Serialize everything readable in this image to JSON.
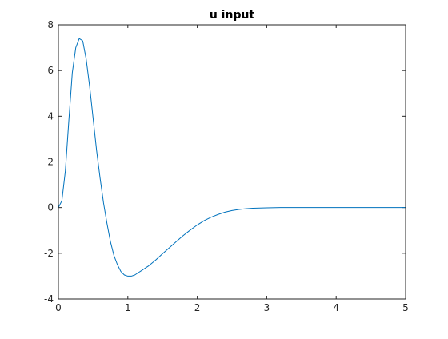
{
  "chart_data": {
    "type": "line",
    "title": "u input",
    "xlabel": "",
    "ylabel": "",
    "xlim": [
      0,
      5
    ],
    "ylim": [
      -4,
      8
    ],
    "xticks": [
      0,
      1,
      2,
      3,
      4,
      5
    ],
    "yticks": [
      -4,
      -2,
      0,
      2,
      4,
      6,
      8
    ],
    "grid": false,
    "box": true,
    "line_color": "#0072BD",
    "series": [
      {
        "x": [
          0,
          0.05,
          0.1,
          0.15,
          0.2,
          0.25,
          0.3,
          0.35,
          0.4,
          0.45,
          0.5,
          0.55,
          0.6,
          0.65,
          0.7,
          0.75,
          0.8,
          0.85,
          0.9,
          0.95,
          1.0,
          1.05,
          1.1,
          1.15,
          1.2,
          1.3,
          1.4,
          1.5,
          1.6,
          1.7,
          1.8,
          1.9,
          2.0,
          2.1,
          2.2,
          2.3,
          2.4,
          2.5,
          2.6,
          2.7,
          2.8,
          2.9,
          3.0,
          3.2,
          3.4,
          3.6,
          3.8,
          4.0,
          4.5,
          5.0
        ],
        "y": [
          0,
          0.3,
          1.6,
          3.8,
          5.9,
          7.0,
          7.4,
          7.3,
          6.5,
          5.3,
          3.9,
          2.5,
          1.3,
          0.2,
          -0.7,
          -1.5,
          -2.1,
          -2.5,
          -2.8,
          -2.95,
          -3.0,
          -3.0,
          -2.95,
          -2.85,
          -2.75,
          -2.55,
          -2.3,
          -2.02,
          -1.75,
          -1.48,
          -1.22,
          -0.98,
          -0.76,
          -0.57,
          -0.42,
          -0.3,
          -0.2,
          -0.13,
          -0.08,
          -0.05,
          -0.03,
          -0.02,
          -0.01,
          0,
          0,
          0,
          0,
          0,
          0,
          0
        ]
      }
    ]
  }
}
